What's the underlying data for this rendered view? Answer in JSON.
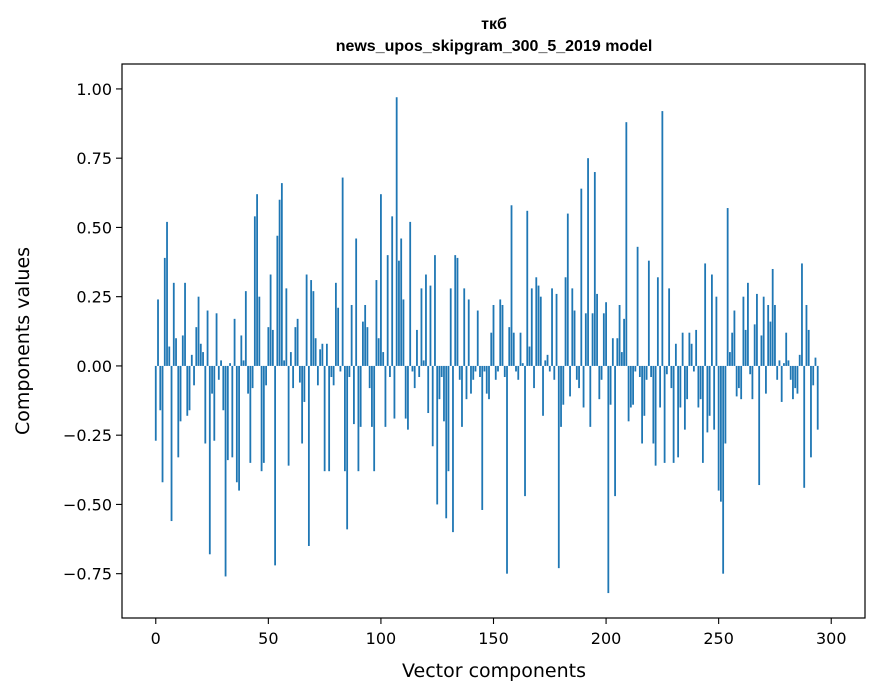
{
  "chart_data": {
    "type": "bar",
    "title_line1": "ткб",
    "title_line2": "news_upos_skipgram_300_5_2019 model",
    "xlabel": "Vector components",
    "ylabel": "Components values",
    "xlim": [
      -15,
      315
    ],
    "ylim": [
      -0.91,
      1.09
    ],
    "x_ticks": [
      0,
      50,
      100,
      150,
      200,
      250,
      300
    ],
    "x_tick_labels": [
      "0",
      "50",
      "100",
      "150",
      "200",
      "250",
      "300"
    ],
    "y_ticks": [
      1.0,
      0.75,
      0.5,
      0.25,
      0.0,
      -0.25,
      -0.5,
      -0.75
    ],
    "y_tick_labels": [
      "1.00",
      "0.75",
      "0.50",
      "0.25",
      "0.00",
      "−0.25",
      "−0.50",
      "−0.75"
    ],
    "bar_color": "#1f77b4",
    "values": [
      -0.27,
      0.24,
      -0.16,
      -0.42,
      0.39,
      0.52,
      0.07,
      -0.56,
      0.3,
      0.1,
      -0.33,
      -0.2,
      0.11,
      0.3,
      -0.18,
      -0.16,
      0.04,
      -0.07,
      0.14,
      0.25,
      0.08,
      0.05,
      -0.28,
      0.2,
      -0.68,
      -0.1,
      -0.27,
      0.19,
      -0.05,
      0.02,
      -0.16,
      -0.76,
      -0.34,
      0.01,
      -0.33,
      0.17,
      -0.42,
      -0.45,
      0.11,
      0.02,
      0.27,
      -0.1,
      -0.35,
      -0.08,
      0.54,
      0.62,
      0.25,
      -0.38,
      -0.35,
      -0.07,
      0.14,
      0.33,
      0.13,
      -0.72,
      0.47,
      0.6,
      0.66,
      0.02,
      0.28,
      -0.36,
      0.05,
      -0.08,
      0.14,
      0.17,
      -0.06,
      -0.28,
      -0.13,
      0.33,
      -0.65,
      0.31,
      0.27,
      0.1,
      -0.07,
      0.06,
      0.08,
      -0.38,
      0.08,
      -0.38,
      -0.04,
      -0.07,
      0.3,
      0.21,
      -0.02,
      0.68,
      -0.38,
      -0.59,
      -0.04,
      0.22,
      -0.21,
      0.46,
      -0.38,
      -0.22,
      0.16,
      0.22,
      0.14,
      -0.08,
      -0.22,
      -0.38,
      0.31,
      0.1,
      0.62,
      0.05,
      -0.22,
      0.4,
      -0.04,
      0.54,
      -0.19,
      0.97,
      0.38,
      0.46,
      0.24,
      -0.19,
      -0.23,
      0.52,
      -0.02,
      -0.08,
      0.13,
      -0.04,
      0.28,
      0.02,
      0.33,
      -0.17,
      0.29,
      -0.29,
      0.4,
      -0.5,
      -0.12,
      -0.04,
      -0.2,
      -0.55,
      -0.38,
      0.28,
      -0.6,
      0.4,
      0.39,
      -0.05,
      -0.22,
      0.28,
      -0.12,
      0.24,
      -0.1,
      -0.05,
      -0.02,
      0.2,
      -0.04,
      -0.52,
      -0.02,
      -0.1,
      -0.12,
      0.12,
      0.22,
      -0.05,
      -0.02,
      0.24,
      0.22,
      -0.04,
      -0.75,
      0.14,
      0.58,
      0.12,
      -0.02,
      -0.05,
      0.12,
      0.01,
      -0.47,
      0.56,
      0.07,
      0.28,
      -0.08,
      0.32,
      0.29,
      0.25,
      -0.18,
      0.02,
      0.04,
      -0.02,
      0.28,
      -0.05,
      0.26,
      -0.73,
      -0.22,
      -0.14,
      0.32,
      0.55,
      -0.11,
      0.28,
      0.2,
      -0.05,
      -0.08,
      0.64,
      -0.15,
      0.19,
      0.75,
      -0.22,
      0.19,
      0.7,
      0.26,
      -0.12,
      -0.05,
      0.19,
      0.23,
      -0.82,
      -0.14,
      0.1,
      -0.47,
      0.1,
      0.22,
      0.05,
      0.17,
      0.88,
      -0.2,
      -0.15,
      -0.14,
      -0.02,
      0.43,
      -0.04,
      -0.28,
      -0.18,
      -0.05,
      0.38,
      -0.04,
      -0.28,
      -0.36,
      0.32,
      -0.15,
      0.92,
      -0.35,
      -0.03,
      0.28,
      -0.08,
      -0.35,
      0.08,
      -0.33,
      -0.15,
      0.12,
      -0.23,
      -0.12,
      0.12,
      0.08,
      -0.02,
      0.13,
      -0.15,
      -0.12,
      -0.35,
      0.37,
      -0.24,
      -0.18,
      0.33,
      -0.23,
      0.25,
      -0.45,
      -0.49,
      -0.75,
      -0.28,
      0.57,
      0.05,
      0.12,
      0.2,
      -0.11,
      -0.08,
      -0.12,
      0.25,
      0.13,
      0.3,
      -0.03,
      -0.12,
      0.15,
      0.26,
      -0.43,
      0.11,
      0.25,
      -0.1,
      0.22,
      0.16,
      0.35,
      0.22,
      -0.05,
      0.02,
      -0.13,
      0.01,
      0.12,
      0.02,
      -0.05,
      -0.12,
      -0.08,
      -0.1,
      0.04,
      0.37,
      -0.44,
      0.22,
      0.13,
      -0.33,
      -0.07,
      0.03,
      -0.23
    ]
  }
}
